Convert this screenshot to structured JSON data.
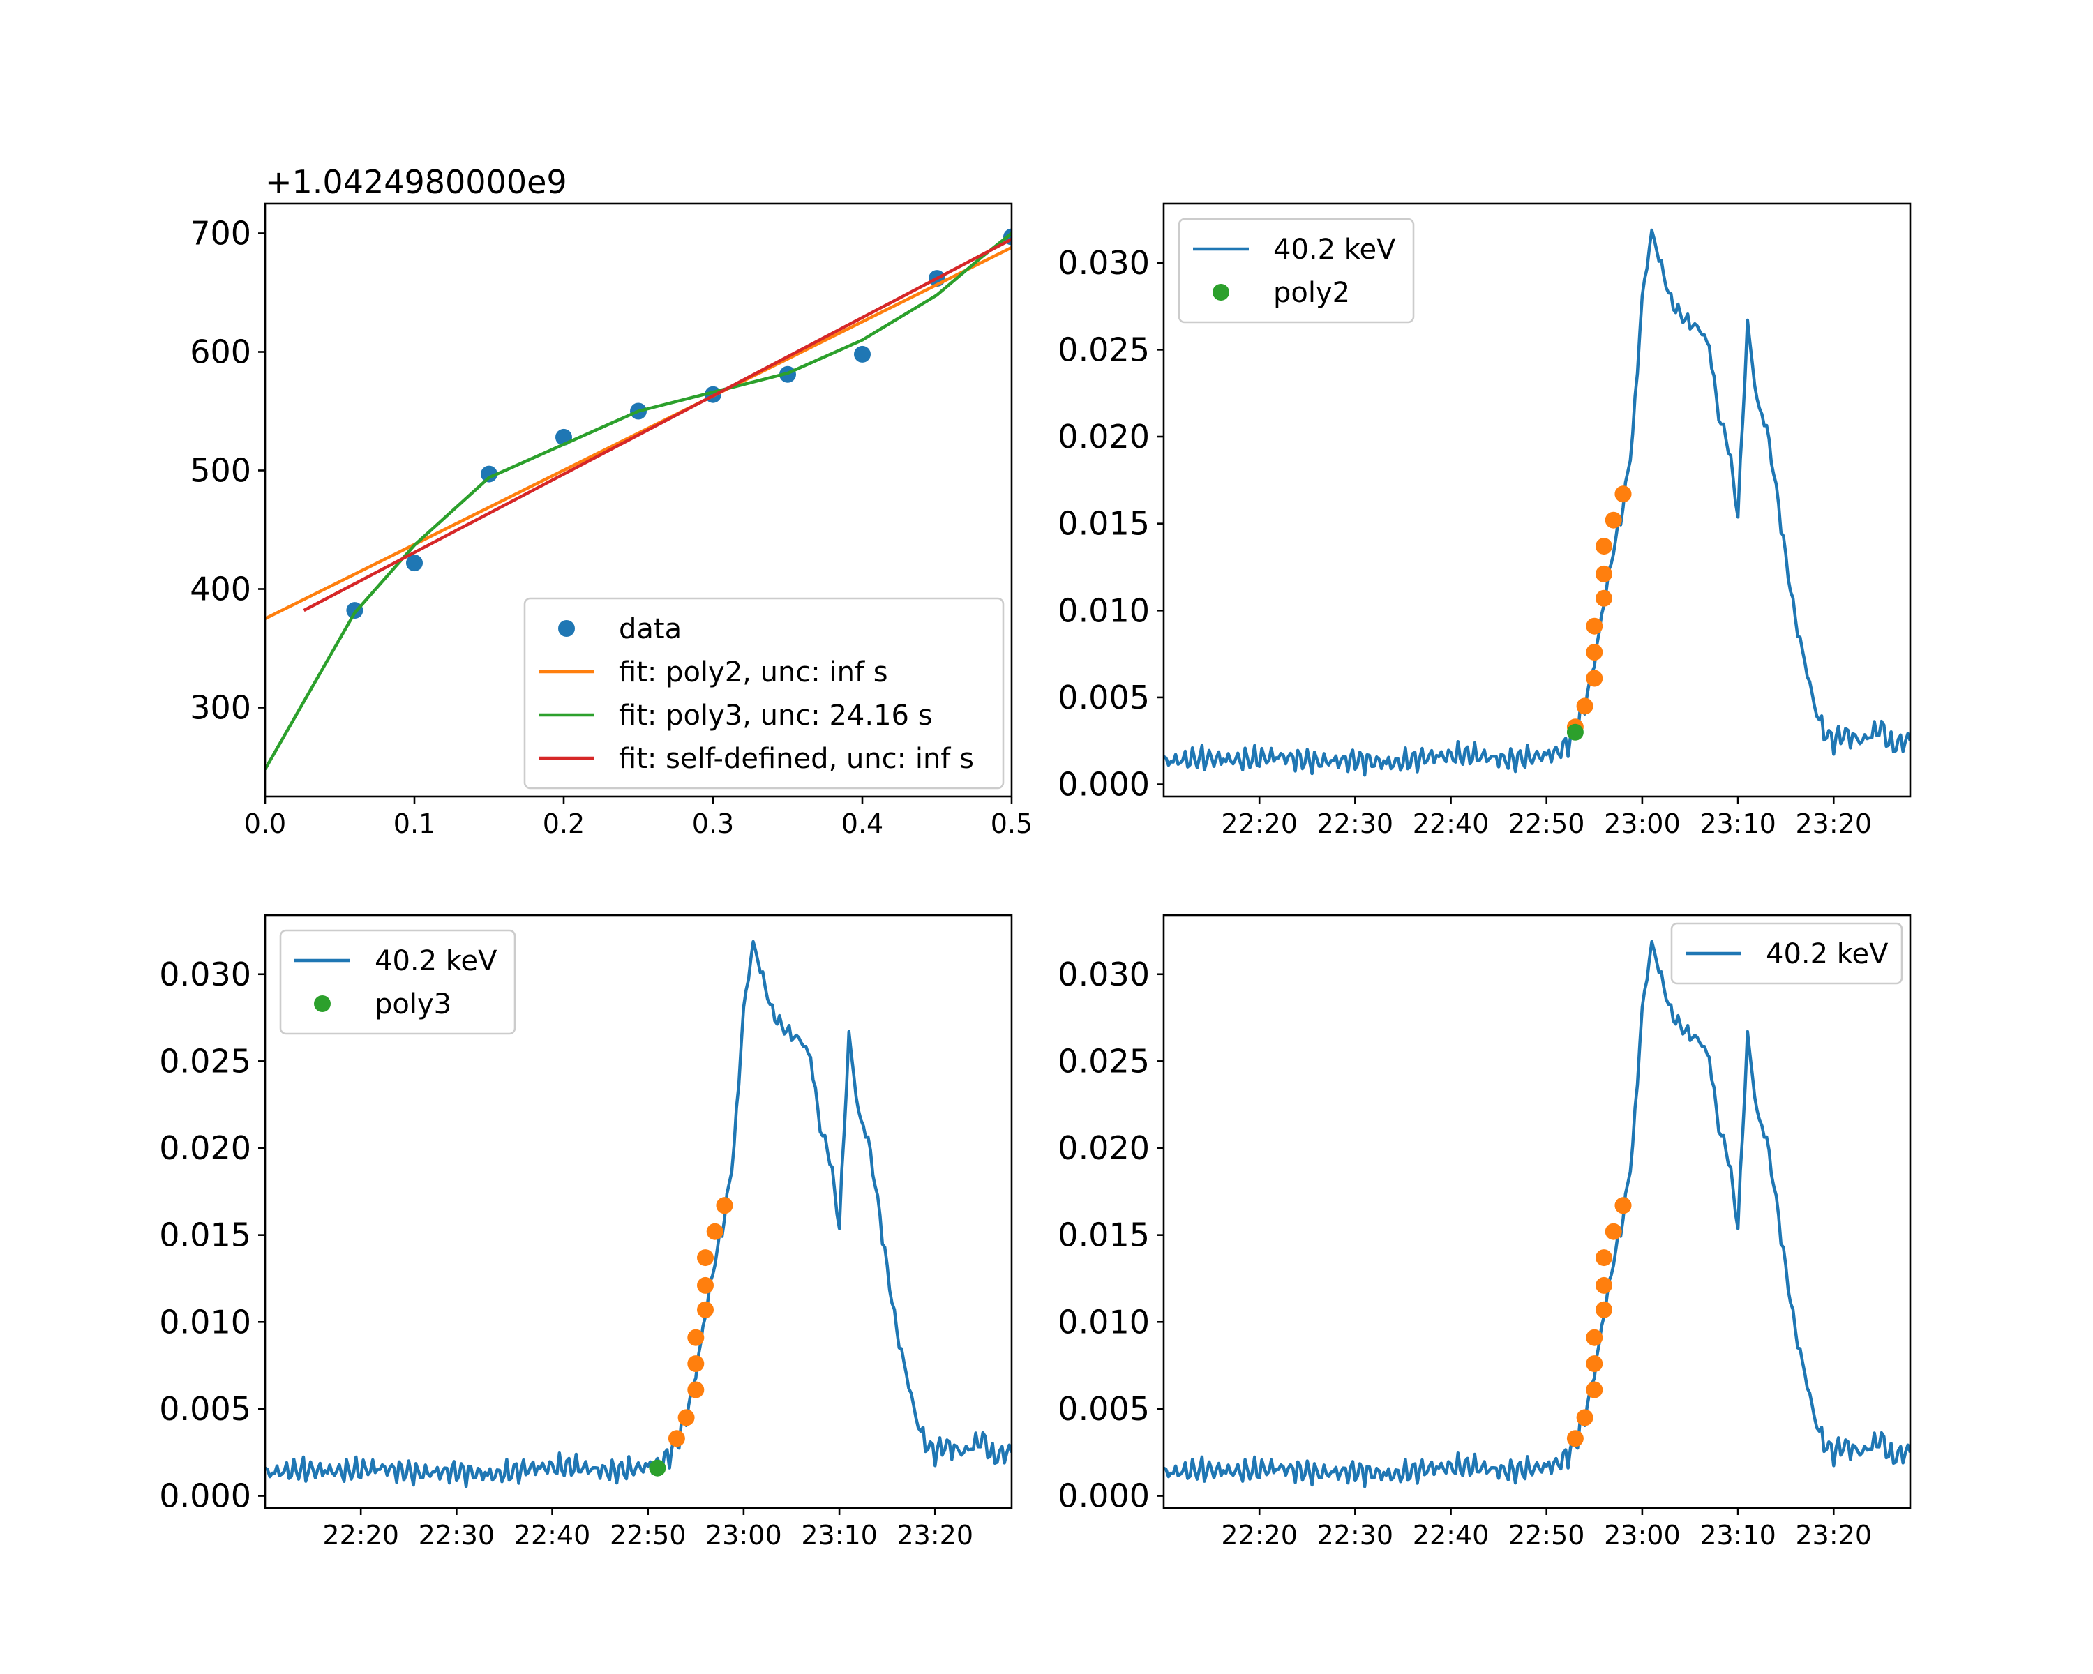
{
  "colors": {
    "blue": "#1f77b4",
    "orange": "#ff7f0e",
    "green": "#2ca02c",
    "red": "#d62728"
  },
  "chart_data": [
    {
      "type": "scatter",
      "title": "",
      "xlabel": "",
      "ylabel": "",
      "offset_label": "+1.0424980000e9",
      "xlim": [
        0.0,
        0.5
      ],
      "ylim": [
        225,
        725
      ],
      "xticks": [
        "0.0",
        "0.1",
        "0.2",
        "0.3",
        "0.4",
        "0.5"
      ],
      "yticks": [
        "300",
        "400",
        "500",
        "600",
        "700"
      ],
      "legend": "lower-right",
      "series": [
        {
          "name": "data",
          "kind": "points",
          "color": "#1f77b4",
          "x": [
            0.06,
            0.1,
            0.15,
            0.2,
            0.25,
            0.3,
            0.35,
            0.4,
            0.45,
            0.5
          ],
          "y": [
            382,
            422,
            497,
            528,
            550,
            564,
            581,
            598,
            662,
            697
          ]
        },
        {
          "name": "fit: poly2, unc: inf s",
          "kind": "line",
          "color": "#ff7f0e",
          "x": [
            0.0,
            0.5
          ],
          "y": [
            375,
            688
          ]
        },
        {
          "name": "fit: poly3, unc: 24.16 s",
          "kind": "line",
          "color": "#2ca02c",
          "x": [
            0.0,
            0.06,
            0.1,
            0.15,
            0.2,
            0.25,
            0.3,
            0.35,
            0.4,
            0.45,
            0.48,
            0.5
          ],
          "y": [
            248,
            380,
            437,
            494,
            522,
            550,
            566,
            582,
            610,
            648,
            680,
            700
          ]
        },
        {
          "name": "fit: self-defined, unc: inf s",
          "kind": "line",
          "color": "#d62728",
          "x": [
            0.026,
            0.5
          ],
          "y": [
            382,
            695
          ]
        }
      ]
    },
    {
      "type": "line",
      "title": "",
      "xlabel": "",
      "ylabel": "",
      "xlim": [
        "22:10",
        "23:28"
      ],
      "ylim": [
        -0.0007,
        0.0334
      ],
      "xticks": [
        "22:20",
        "22:30",
        "22:40",
        "22:50",
        "23:00",
        "23:10",
        "23:20"
      ],
      "yticks": [
        "0.000",
        "0.005",
        "0.010",
        "0.015",
        "0.020",
        "0.025",
        "0.030"
      ],
      "legend": "top-left",
      "series": [
        {
          "name": "40.2 keV",
          "kind": "line",
          "color": "#1f77b4"
        },
        {
          "name": "",
          "kind": "points",
          "color": "#ff7f0e",
          "x": [
            "22:53",
            "22:54",
            "22:55",
            "22:55",
            "22:55",
            "22:56",
            "22:56",
            "22:56",
            "22:57",
            "22:58",
            "22:58"
          ],
          "y": [
            0.0033,
            0.0045,
            0.0061,
            0.0076,
            0.0091,
            0.0107,
            0.0121,
            0.0137,
            0.0152,
            0.0167,
            0.0167
          ]
        },
        {
          "name": "poly2",
          "kind": "points",
          "color": "#2ca02c",
          "x": [
            "22:53"
          ],
          "y": [
            0.003
          ]
        }
      ]
    },
    {
      "type": "line",
      "title": "",
      "xlabel": "",
      "ylabel": "",
      "xlim": [
        "22:10",
        "23:28"
      ],
      "ylim": [
        -0.0007,
        0.0334
      ],
      "xticks": [
        "22:20",
        "22:30",
        "22:40",
        "22:50",
        "23:00",
        "23:10",
        "23:20"
      ],
      "yticks": [
        "0.000",
        "0.005",
        "0.010",
        "0.015",
        "0.020",
        "0.025",
        "0.030"
      ],
      "legend": "top-left",
      "series": [
        {
          "name": "40.2 keV",
          "kind": "line",
          "color": "#1f77b4"
        },
        {
          "name": "",
          "kind": "points",
          "color": "#ff7f0e",
          "x": [
            "22:53",
            "22:54",
            "22:55",
            "22:55",
            "22:55",
            "22:56",
            "22:56",
            "22:56",
            "22:57",
            "22:58",
            "22:58"
          ],
          "y": [
            0.0033,
            0.0045,
            0.0061,
            0.0076,
            0.0091,
            0.0107,
            0.0121,
            0.0137,
            0.0152,
            0.0167,
            0.0167
          ]
        },
        {
          "name": "poly3",
          "kind": "points",
          "color": "#2ca02c",
          "x": [
            "22:51"
          ],
          "y": [
            0.0016
          ]
        }
      ]
    },
    {
      "type": "line",
      "title": "",
      "xlabel": "",
      "ylabel": "",
      "xlim": [
        "22:10",
        "23:28"
      ],
      "ylim": [
        -0.0007,
        0.0334
      ],
      "xticks": [
        "22:20",
        "22:30",
        "22:40",
        "22:50",
        "23:00",
        "23:10",
        "23:20"
      ],
      "yticks": [
        "0.000",
        "0.005",
        "0.010",
        "0.015",
        "0.020",
        "0.025",
        "0.030"
      ],
      "legend": "top-right",
      "series": [
        {
          "name": "40.2 keV",
          "kind": "line",
          "color": "#1f77b4"
        },
        {
          "name": "",
          "kind": "points",
          "color": "#ff7f0e",
          "x": [
            "22:53",
            "22:54",
            "22:55",
            "22:55",
            "22:55",
            "22:56",
            "22:56",
            "22:56",
            "22:57",
            "22:58",
            "22:58"
          ],
          "y": [
            0.0033,
            0.0045,
            0.0061,
            0.0076,
            0.0091,
            0.0107,
            0.0121,
            0.0137,
            0.0152,
            0.0167,
            0.0167
          ]
        }
      ]
    }
  ],
  "lightcurve": {
    "time": [
      "22:10",
      "22:14",
      "22:18",
      "22:22",
      "22:26",
      "22:30",
      "22:34",
      "22:38",
      "22:42",
      "22:46",
      "22:49",
      "22:51",
      "22:52",
      "22:53",
      "22:54",
      "22:55",
      "22:56",
      "22:57",
      "22:58",
      "22:59",
      "23:00",
      "23:01",
      "23:02",
      "23:03",
      "23:04",
      "23:05",
      "23:06",
      "23:07",
      "23:08",
      "23:09",
      "23:10",
      "23:11",
      "23:12",
      "23:13",
      "23:14",
      "23:15",
      "23:16",
      "23:17",
      "23:18",
      "23:19",
      "23:20",
      "23:21",
      "23:23",
      "23:25",
      "23:26",
      "23:28"
    ],
    "value": [
      0.0013,
      0.0015,
      0.0014,
      0.0016,
      0.0013,
      0.0014,
      0.0012,
      0.0016,
      0.0017,
      0.0014,
      0.0016,
      0.0018,
      0.0022,
      0.003,
      0.0045,
      0.007,
      0.0105,
      0.0135,
      0.016,
      0.02,
      0.028,
      0.0318,
      0.0298,
      0.0278,
      0.027,
      0.0265,
      0.0262,
      0.0252,
      0.0212,
      0.0195,
      0.0155,
      0.0265,
      0.022,
      0.0205,
      0.017,
      0.013,
      0.0095,
      0.007,
      0.0045,
      0.003,
      0.0025,
      0.0029,
      0.0025,
      0.0033,
      0.0022,
      0.0026
    ]
  }
}
